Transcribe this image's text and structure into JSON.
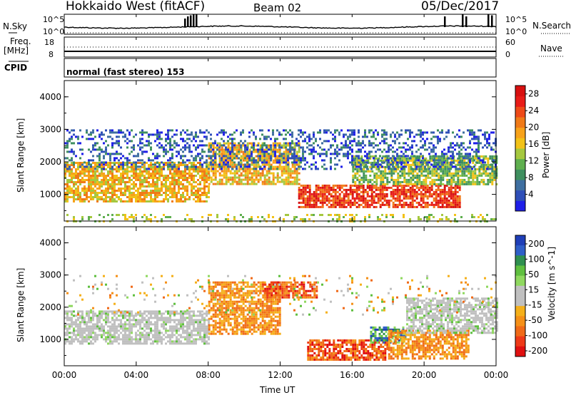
{
  "header": {
    "station": "Hokkaido West (fitACF)",
    "beam": "Beam 02",
    "date": "05/Dec/2017"
  },
  "params": {
    "nsky_label": "N.Sky",
    "nsky_top": "10^5",
    "nsky_bottom": "10^0",
    "right_top": "10^5",
    "right_bottom": "10^0",
    "nsearch_label": "N.Search",
    "freq_label": "Freq.",
    "freq_unit": "[MHz]",
    "freq_top": "18",
    "freq_bottom": "8",
    "nave_top": "60",
    "nave_bottom": "0",
    "nave_label": "Nave",
    "cpid_label": "CPID",
    "cpid_text": "normal (fast stereo) 153"
  },
  "axes": {
    "ylabel": "Slant Range [km]",
    "yticks": [
      "1000",
      "2000",
      "3000",
      "4000"
    ],
    "xlabel": "Time UT",
    "xticks": [
      "00:00",
      "04:00",
      "08:00",
      "12:00",
      "16:00",
      "20:00",
      "00:00"
    ]
  },
  "colorbars": {
    "power": {
      "label": "Power [dB]",
      "ticks": [
        "4",
        "8",
        "12",
        "16",
        "20",
        "24",
        "28"
      ],
      "colors": [
        "#1f1fe8",
        "#2f4fb8",
        "#3f6fa0",
        "#3f8f5f",
        "#5faf4f",
        "#a5c83f",
        "#f2c218",
        "#f7a21a",
        "#f07a18",
        "#ee4a18",
        "#e81c18",
        "#d81010"
      ]
    },
    "velocity": {
      "label": "Velocity [m s^-1]",
      "ticks": [
        "200",
        "100",
        "50",
        "15",
        "-15",
        "-50",
        "-100",
        "-200"
      ],
      "colors": [
        "#1f3fb8",
        "#2f5fc8",
        "#2f8f4f",
        "#5fbf3f",
        "#8fd85f",
        "#c0c0c0",
        "#c0c0c0",
        "#f5b01a",
        "#f59018",
        "#f06a18",
        "#ee3a18",
        "#e01010"
      ]
    }
  },
  "chart_data": [
    {
      "type": "heatmap",
      "title": "Power [dB]",
      "xlabel": "Time UT",
      "ylabel": "Slant Range [km]",
      "xlim": [
        "00:00",
        "00:00"
      ],
      "ylim": [
        180,
        4500
      ],
      "colorbar_range": [
        0,
        30
      ],
      "regions": [
        {
          "t_start": 0.0,
          "t_end": 8.0,
          "range_start": 800,
          "range_end": 2000,
          "power_db": 20
        },
        {
          "t_start": 8.0,
          "t_end": 13.0,
          "range_start": 1300,
          "range_end": 2600,
          "power_db": 18
        },
        {
          "t_start": 13.0,
          "t_end": 22.0,
          "range_start": 600,
          "range_end": 1300,
          "power_db": 26
        },
        {
          "t_start": 16.0,
          "t_end": 24.0,
          "range_start": 1300,
          "range_end": 2200,
          "power_db": 14
        },
        {
          "t_start": 0.0,
          "t_end": 24.0,
          "range_start": 1800,
          "range_end": 3000,
          "power_db": 6
        }
      ]
    },
    {
      "type": "heatmap",
      "title": "Velocity [m s^-1]",
      "xlabel": "Time UT",
      "ylabel": "Slant Range [km]",
      "xlim": [
        "00:00",
        "00:00"
      ],
      "ylim": [
        180,
        4500
      ],
      "colorbar_ticks": [
        200,
        100,
        50,
        15,
        -15,
        -50,
        -100,
        -200
      ],
      "regions": [
        {
          "t_start": 0.0,
          "t_end": 8.0,
          "range_start": 900,
          "range_end": 1900,
          "velocity": 0
        },
        {
          "t_start": 8.0,
          "t_end": 12.0,
          "range_start": 1200,
          "range_end": 2800,
          "velocity": -60
        },
        {
          "t_start": 11.0,
          "t_end": 14.0,
          "range_start": 2300,
          "range_end": 2800,
          "velocity": -120
        },
        {
          "t_start": 13.5,
          "t_end": 18.0,
          "range_start": 400,
          "range_end": 1000,
          "velocity": -110
        },
        {
          "t_start": 17.0,
          "t_end": 19.0,
          "range_start": 900,
          "range_end": 1400,
          "velocity": 80
        },
        {
          "t_start": 18.0,
          "t_end": 22.5,
          "range_start": 400,
          "range_end": 1300,
          "velocity": -40
        },
        {
          "t_start": 19.0,
          "t_end": 24.0,
          "range_start": 1200,
          "range_end": 2300,
          "velocity": 0
        }
      ]
    }
  ]
}
